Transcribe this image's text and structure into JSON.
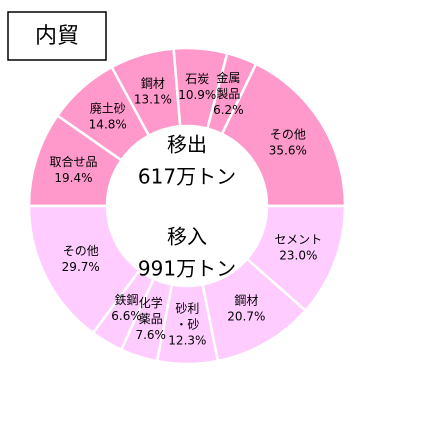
{
  "title": "内貿",
  "chart_data": [
    {
      "type": "half-donut",
      "half": "top",
      "center_label": "移出",
      "total": {
        "value": 617,
        "label": "617万トン"
      },
      "color": "#ff99cc",
      "categories": [
        "取合せ品",
        "廃土砂",
        "鋼材",
        "石炭",
        [
          "金属",
          "製品"
        ],
        "その他"
      ],
      "values": [
        19.4,
        14.8,
        13.1,
        10.9,
        6.2,
        35.6
      ],
      "value_labels": [
        "19.4%",
        "14.8%",
        "13.1%",
        "10.9%",
        "6.2%",
        "35.6%"
      ]
    },
    {
      "type": "half-donut",
      "half": "bottom",
      "center_label": "移入",
      "total": {
        "value": 991,
        "label": "991万トン"
      },
      "color": "#ffccff",
      "categories": [
        "セメント",
        "鋼材",
        [
          "砂利",
          "・砂"
        ],
        [
          "化学",
          "薬品"
        ],
        "鉄鋼",
        "その他"
      ],
      "values": [
        23.0,
        20.7,
        12.3,
        7.6,
        6.6,
        29.7
      ],
      "value_labels": [
        "23.0%",
        "20.7%",
        "12.3%",
        "7.6%",
        "6.6%",
        "29.7%"
      ]
    }
  ]
}
